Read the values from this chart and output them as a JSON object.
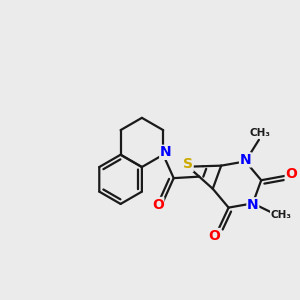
{
  "bg_color": "#ebebeb",
  "atom_colors": {
    "C": "#1a1a1a",
    "N": "#0000ff",
    "O": "#ff0000",
    "S": "#ccaa00"
  },
  "bond_color": "#1a1a1a",
  "bond_lw": 1.6
}
